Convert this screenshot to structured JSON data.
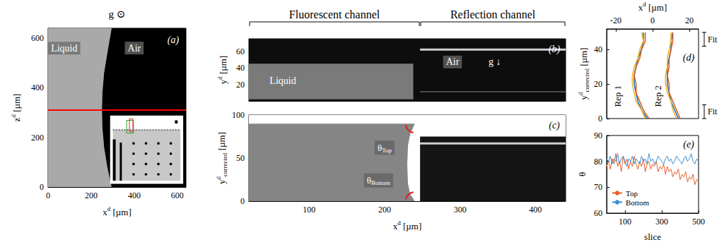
{
  "chart_data": [
    {
      "panel": "(a)",
      "type": "image_map",
      "gravity": "g ⊙",
      "x_label": {
        "text": "x",
        "sup": "d",
        "unit": "[µm]"
      },
      "y_label": {
        "text": "z",
        "sup": "d",
        "unit": "[µm]"
      },
      "xlim": [
        0,
        640
      ],
      "ylim": [
        0,
        640
      ],
      "xticks": [
        0,
        200,
        400,
        600
      ],
      "yticks": [
        0,
        200,
        400,
        600
      ],
      "interface": {
        "x": [
          295,
          275,
          260,
          252,
          250,
          252,
          260,
          275,
          295
        ],
        "z": [
          0,
          80,
          160,
          240,
          310,
          380,
          460,
          540,
          640
        ]
      },
      "line": {
        "z": 310,
        "color": "#ff0000"
      },
      "annotations": [
        {
          "text": "Liquid",
          "x": 75,
          "y": 560
        },
        {
          "text": "Air",
          "x": 400,
          "y": 560
        }
      ]
    },
    {
      "panel": "(b)",
      "type": "image_map",
      "channels": [
        "Fluorescent channel",
        "Reflection channel"
      ],
      "y_label": {
        "text": "y",
        "sup": "d",
        "unit": "[µm]"
      },
      "xlim": [
        20,
        440
      ],
      "ylim": [
        0,
        75
      ],
      "xticks": [
        100,
        200,
        300,
        400
      ],
      "yticks": [
        20,
        40,
        60
      ],
      "tick_labels": "y",
      "channel_boundary": 247,
      "liquid": {
        "interface_x": 238,
        "y": [
          2,
          45
        ]
      },
      "reflection_lines_y": [
        62,
        11
      ],
      "annotations": [
        {
          "text": "Liquid",
          "x": 65,
          "y": 24
        },
        {
          "text": "Air",
          "x": 290,
          "y": 47
        },
        {
          "text": "g ↓",
          "x": 346,
          "y": 47
        }
      ]
    },
    {
      "panel": "(c)",
      "type": "image_map",
      "x_label": {
        "text": "x",
        "sup": "d",
        "unit": "[µm]"
      },
      "y_label": {
        "text": "y",
        "sup": "d",
        "sub": "corrected",
        "unit": "[µm]"
      },
      "xlim": [
        20,
        440
      ],
      "ylim": [
        0,
        100
      ],
      "xticks": [
        100,
        200,
        300,
        400
      ],
      "yticks": [
        0,
        50,
        100
      ],
      "channel_boundary": 247,
      "interface": {
        "x": [
          240,
          234,
          231,
          230,
          231,
          234,
          240
        ],
        "y": [
          0,
          8,
          20,
          42,
          65,
          78,
          90
        ]
      },
      "reflection_top": 75,
      "reflection_line_y": 67,
      "angle_labels": [
        {
          "text": "θ",
          "sub": "Top",
          "x": 200,
          "y": 62
        },
        {
          "text": "θ",
          "sub": "Bottom",
          "x": 192,
          "y": 24
        }
      ]
    },
    {
      "panel": "(d)",
      "type": "line",
      "x_label": {
        "text": "x",
        "sup": "d",
        "unit": "[µm]"
      },
      "y_label": {
        "text": "y",
        "sup": "d",
        "sub": "corrected",
        "unit": "[µm]"
      },
      "xlim": [
        -25,
        25
      ],
      "ylim": [
        0,
        52
      ],
      "xticks": [
        -20,
        0,
        20
      ],
      "yticks": [
        0,
        20,
        40
      ],
      "y": [
        0,
        5,
        10,
        15,
        20,
        25,
        30,
        35,
        40,
        45,
        50
      ],
      "curves": [
        {
          "group": "Rep 1",
          "color": "#0072bd",
          "x": [
            -3,
            -6,
            -8,
            -9,
            -10,
            -10,
            -9,
            -8,
            -6,
            -5,
            -5
          ]
        },
        {
          "group": "Rep 1",
          "color": "#d95319",
          "x": [
            -2,
            -5,
            -7,
            -9,
            -9,
            -10,
            -9,
            -7,
            -6,
            -4,
            -4
          ]
        },
        {
          "group": "Rep 1",
          "color": "#edb120",
          "x": [
            -4,
            -6,
            -9,
            -10,
            -11,
            -11,
            -10,
            -8,
            -7,
            -5,
            -6
          ]
        },
        {
          "group": "Rep 2",
          "color": "#0072bd",
          "x": [
            14,
            12,
            10,
            9,
            8,
            8,
            8,
            9,
            10,
            10,
            11
          ]
        },
        {
          "group": "Rep 2",
          "color": "#d95319",
          "x": [
            15,
            13,
            11,
            9,
            9,
            8,
            9,
            9,
            10,
            11,
            11
          ]
        },
        {
          "group": "Rep 2",
          "color": "#edb120",
          "x": [
            13,
            11,
            10,
            8,
            7,
            7,
            8,
            8,
            9,
            10,
            10
          ]
        }
      ],
      "annotations": [
        {
          "text": "Rep 1",
          "x": -19,
          "y": 13
        },
        {
          "text": "Rep 2",
          "x": 3,
          "y": 13
        }
      ],
      "fit_ranges": [
        {
          "label": "Fit",
          "y": [
            42,
            50
          ]
        },
        {
          "label": "Fit",
          "y": [
            0,
            8
          ]
        }
      ]
    },
    {
      "panel": "(e)",
      "type": "line",
      "x_label": {
        "text": "slice"
      },
      "y_label": {
        "text": "θ"
      },
      "xlim": [
        0,
        500
      ],
      "ylim": [
        60,
        90
      ],
      "xticks": [
        100,
        300,
        500
      ],
      "yticks": [
        60,
        70,
        80,
        90
      ],
      "legend": "lower left",
      "x": [
        0,
        10,
        20,
        30,
        40,
        50,
        60,
        70,
        80,
        90,
        100,
        110,
        120,
        130,
        140,
        150,
        160,
        170,
        180,
        190,
        200,
        210,
        220,
        230,
        240,
        250,
        260,
        270,
        280,
        290,
        300,
        310,
        320,
        330,
        340,
        350,
        360,
        370,
        380,
        390,
        400,
        410,
        420,
        430,
        440,
        450,
        460,
        470,
        480,
        490,
        500
      ],
      "series": [
        {
          "name": "Top",
          "color": "#e8602c",
          "values": [
            78,
            80,
            77,
            81,
            79,
            83,
            78,
            80,
            76,
            82,
            79,
            81,
            77,
            80,
            78,
            82,
            79,
            77,
            80,
            78,
            81,
            76,
            79,
            80,
            77,
            79,
            78,
            80,
            76,
            78,
            77,
            79,
            75,
            78,
            76,
            77,
            74,
            76,
            75,
            77,
            73,
            75,
            74,
            76,
            72,
            74,
            73,
            75,
            71,
            73,
            72
          ]
        },
        {
          "name": "Bottom",
          "color": "#3d8fd1",
          "values": [
            81,
            80,
            82,
            79,
            81,
            80,
            83,
            79,
            81,
            82,
            80,
            78,
            81,
            80,
            82,
            79,
            81,
            80,
            79,
            82,
            80,
            81,
            79,
            83,
            80,
            81,
            79,
            80,
            82,
            81,
            80,
            79,
            81,
            82,
            80,
            81,
            79,
            80,
            82,
            81,
            80,
            79,
            81,
            82,
            80,
            81,
            83,
            80,
            79,
            81,
            80
          ]
        }
      ]
    }
  ]
}
